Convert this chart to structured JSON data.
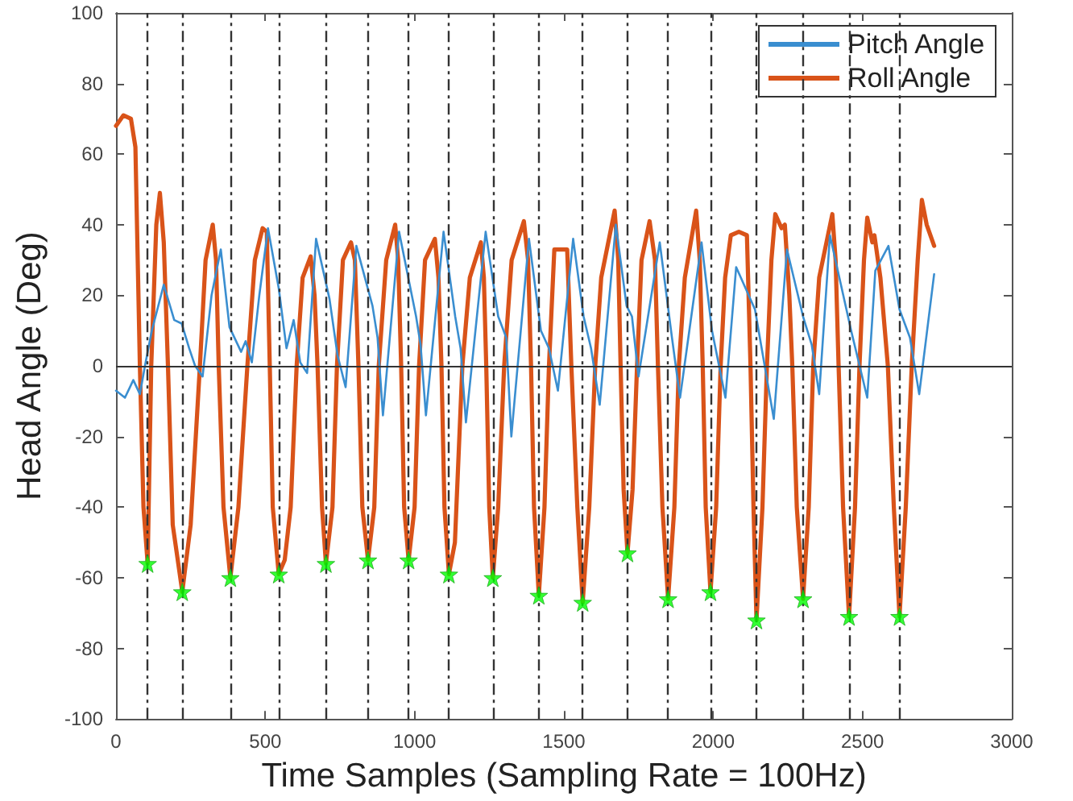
{
  "chart_data": {
    "type": "line",
    "xlabel": "Time Samples (Sampling Rate = 100Hz)",
    "ylabel": "Head Angle (Deg)",
    "xlim": [
      0,
      3000
    ],
    "xticks": [
      0,
      500,
      1000,
      1500,
      2000,
      2500,
      3000
    ],
    "ylim": [
      -100,
      100
    ],
    "yticks": [
      -100,
      -80,
      -60,
      -40,
      -20,
      0,
      20,
      40,
      60,
      80,
      100
    ],
    "grid": false,
    "legend": "top right",
    "marker": "none",
    "line_style": "solid",
    "ref_lines": [
      {
        "axis": "y",
        "value": 0,
        "color": "#333333",
        "line_style": "solid"
      },
      {
        "axis": "x",
        "value": 106,
        "color": "#333333",
        "line_style": "dashed"
      },
      {
        "axis": "x",
        "value": 222,
        "color": "#333333",
        "line_style": "dashed"
      },
      {
        "axis": "x",
        "value": 383,
        "color": "#333333",
        "line_style": "dashed"
      },
      {
        "axis": "x",
        "value": 545,
        "color": "#333333",
        "line_style": "dashed"
      },
      {
        "axis": "x",
        "value": 703,
        "color": "#333333",
        "line_style": "dashed"
      },
      {
        "axis": "x",
        "value": 844,
        "color": "#333333",
        "line_style": "dashed"
      },
      {
        "axis": "x",
        "value": 980,
        "color": "#333333",
        "line_style": "dashed"
      },
      {
        "axis": "x",
        "value": 1115,
        "color": "#333333",
        "line_style": "dashed"
      },
      {
        "axis": "x",
        "value": 1262,
        "color": "#333333",
        "line_style": "dashed"
      },
      {
        "axis": "x",
        "value": 1416,
        "color": "#333333",
        "line_style": "dashed"
      },
      {
        "axis": "x",
        "value": 1563,
        "color": "#333333",
        "line_style": "dashed"
      },
      {
        "axis": "x",
        "value": 1713,
        "color": "#333333",
        "line_style": "dashed"
      },
      {
        "axis": "x",
        "value": 1849,
        "color": "#333333",
        "line_style": "dashed"
      },
      {
        "axis": "x",
        "value": 1991,
        "color": "#333333",
        "line_style": "dashed"
      },
      {
        "axis": "x",
        "value": 2145,
        "color": "#333333",
        "line_style": "dashed"
      },
      {
        "axis": "x",
        "value": 2301,
        "color": "#333333",
        "line_style": "dashed"
      },
      {
        "axis": "x",
        "value": 2455,
        "color": "#333333",
        "line_style": "dashed"
      },
      {
        "axis": "x",
        "value": 2624,
        "color": "#333333",
        "line_style": "dashed"
      }
    ],
    "series": [
      {
        "name": "Pitch Angle",
        "color": "#3a8ed0",
        "x": [
          0,
          30,
          58,
          80,
          97,
          120,
          160,
          195,
          220,
          245,
          265,
          290,
          320,
          351,
          380,
          419,
          434,
          455,
          480,
          509,
          545,
          571,
          595,
          617,
          640,
          670,
          715,
          742,
          769,
          805,
          859,
          876,
          894,
          948,
          1005,
          1020,
          1038,
          1097,
          1136,
          1154,
          1172,
          1238,
          1280,
          1307,
          1324,
          1383,
          1423,
          1450,
          1480,
          1531,
          1566,
          1591,
          1620,
          1674,
          1710,
          1728,
          1750,
          1821,
          1862,
          1889,
          1961,
          1996,
          2041,
          2077,
          2140,
          2203,
          2247,
          2301,
          2330,
          2355,
          2391,
          2462,
          2516,
          2543,
          2587,
          2624,
          2659,
          2690,
          2740
        ],
        "values": [
          -7,
          -9,
          -4,
          -8,
          0,
          10,
          23,
          13,
          12,
          5,
          0,
          -3,
          20,
          33,
          11,
          4,
          7,
          1,
          20,
          39,
          22,
          5,
          13,
          1,
          -2,
          36,
          19,
          3,
          -6,
          34,
          17,
          8,
          -14,
          38,
          14,
          6,
          -14,
          38,
          14,
          5,
          -16,
          38,
          14,
          8,
          -20,
          36,
          10,
          5,
          -7,
          36,
          14,
          5,
          -11,
          40,
          17,
          14,
          -3,
          35,
          8,
          -9,
          35,
          10,
          -9,
          28,
          16,
          -15,
          33,
          14,
          6,
          -8,
          37,
          10,
          -9,
          27,
          34,
          16,
          8,
          -8,
          26
        ]
      },
      {
        "name": "Roll Angle",
        "color": "#d95319",
        "x": [
          0,
          25,
          50,
          65,
          80,
          92,
          106,
          118,
          135,
          147,
          160,
          174,
          190,
          222,
          250,
          281,
          300,
          324,
          335,
          344,
          360,
          383,
          410,
          440,
          465,
          491,
          505,
          515,
          525,
          545,
          565,
          585,
          605,
          625,
          652,
          665,
          675,
          690,
          703,
          725,
          740,
          760,
          787,
          800,
          812,
          825,
          844,
          865,
          880,
          905,
          935,
          945,
          955,
          965,
          980,
          1000,
          1015,
          1035,
          1068,
          1080,
          1090,
          1100,
          1115,
          1135,
          1160,
          1185,
          1222,
          1232,
          1240,
          1250,
          1262,
          1280,
          1300,
          1325,
          1366,
          1380,
          1390,
          1400,
          1416,
          1435,
          1450,
          1468,
          1511,
          1525,
          1545,
          1563,
          1585,
          1605,
          1625,
          1670,
          1682,
          1690,
          1700,
          1713,
          1730,
          1745,
          1760,
          1787,
          1805,
          1815,
          1830,
          1849,
          1870,
          1885,
          1905,
          1943,
          1955,
          1965,
          1975,
          1991,
          2010,
          2025,
          2040,
          2059,
          2086,
          2113,
          2125,
          2135,
          2145,
          2165,
          2180,
          2195,
          2208,
          2229,
          2240,
          2255,
          2265,
          2280,
          2301,
          2320,
          2335,
          2355,
          2399,
          2410,
          2420,
          2435,
          2455,
          2475,
          2490,
          2505,
          2516,
          2533,
          2540,
          2560,
          2585,
          2605,
          2624,
          2645,
          2665,
          2685,
          2699,
          2715,
          2740
        ],
        "values": [
          68,
          71,
          70,
          62,
          0,
          -40,
          -56,
          0,
          40,
          49,
          35,
          0,
          -45,
          -64,
          -45,
          0,
          30,
          40,
          30,
          0,
          -40,
          -60,
          -40,
          0,
          30,
          39,
          38,
          0,
          -40,
          -59,
          -55,
          -40,
          0,
          25,
          31,
          20,
          0,
          -40,
          -56,
          -40,
          0,
          30,
          35,
          30,
          0,
          -40,
          -55,
          -40,
          0,
          30,
          40,
          30,
          0,
          -40,
          -55,
          -40,
          0,
          30,
          36,
          25,
          0,
          -40,
          -59,
          -50,
          0,
          25,
          35,
          25,
          0,
          -40,
          -60,
          -40,
          0,
          30,
          41,
          30,
          0,
          -40,
          -65,
          -40,
          0,
          33,
          33,
          0,
          -40,
          -67,
          -40,
          0,
          25,
          44,
          30,
          0,
          -35,
          -53,
          -35,
          0,
          30,
          41,
          30,
          0,
          -40,
          -66,
          -40,
          0,
          25,
          44,
          30,
          0,
          -40,
          -64,
          -40,
          0,
          25,
          37,
          38,
          37,
          0,
          -40,
          -72,
          -40,
          0,
          30,
          43,
          39,
          40,
          20,
          0,
          -40,
          -66,
          -40,
          0,
          25,
          43,
          30,
          0,
          -40,
          -71,
          -40,
          0,
          30,
          42,
          35,
          37,
          25,
          0,
          -40,
          -71,
          -40,
          0,
          30,
          47,
          40,
          34
        ]
      },
      {
        "color": "#00ff00",
        "type": "scatter",
        "marker": "star",
        "x": [
          106,
          222,
          383,
          545,
          703,
          844,
          980,
          1115,
          1262,
          1416,
          1563,
          1713,
          1849,
          1991,
          2145,
          2301,
          2455,
          2624
        ],
        "values": [
          -56,
          -64,
          -60,
          -59,
          -56,
          -55,
          -55,
          -59,
          -60,
          -65,
          -67,
          -53,
          -66,
          -64,
          -72,
          -66,
          -71,
          -71
        ]
      }
    ]
  }
}
